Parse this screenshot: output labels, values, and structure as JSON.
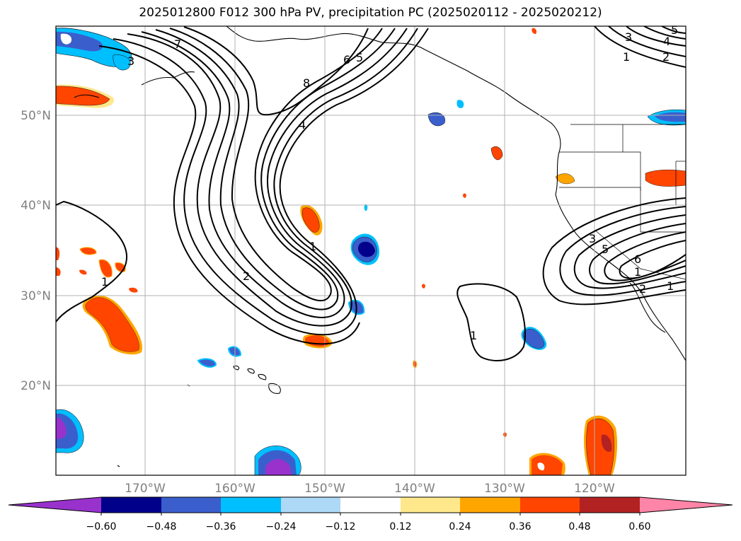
{
  "title": "2025012800 F012 300 hPa PV, precipitation PC (2025020112 - 2025020212)",
  "lat_labels": [
    "50°N",
    "40°N",
    "30°N",
    "20°N"
  ],
  "lon_labels": [
    "170°W",
    "160°W",
    "150°W",
    "140°W",
    "130°W",
    "120°W"
  ],
  "colorbar": {
    "tick_labels": [
      "−0.60",
      "−0.48",
      "−0.36",
      "−0.24",
      "−0.12",
      "0.12",
      "0.24",
      "0.36",
      "0.48",
      "0.60"
    ],
    "colors": [
      "#9932cc",
      "#00008b",
      "#3a5fcd",
      "#00bfff",
      "#add8f6",
      "#ffffff",
      "#ffe88c",
      "#ffa500",
      "#ff4500",
      "#b22222",
      "#ff85a8"
    ]
  },
  "contour_labels": [
    "7",
    "3",
    "8",
    "6",
    "5",
    "4",
    "1",
    "2",
    "1",
    "3",
    "1",
    "2",
    "4",
    "5",
    "3",
    "5",
    "6",
    "1",
    "1",
    "2",
    "1"
  ]
}
